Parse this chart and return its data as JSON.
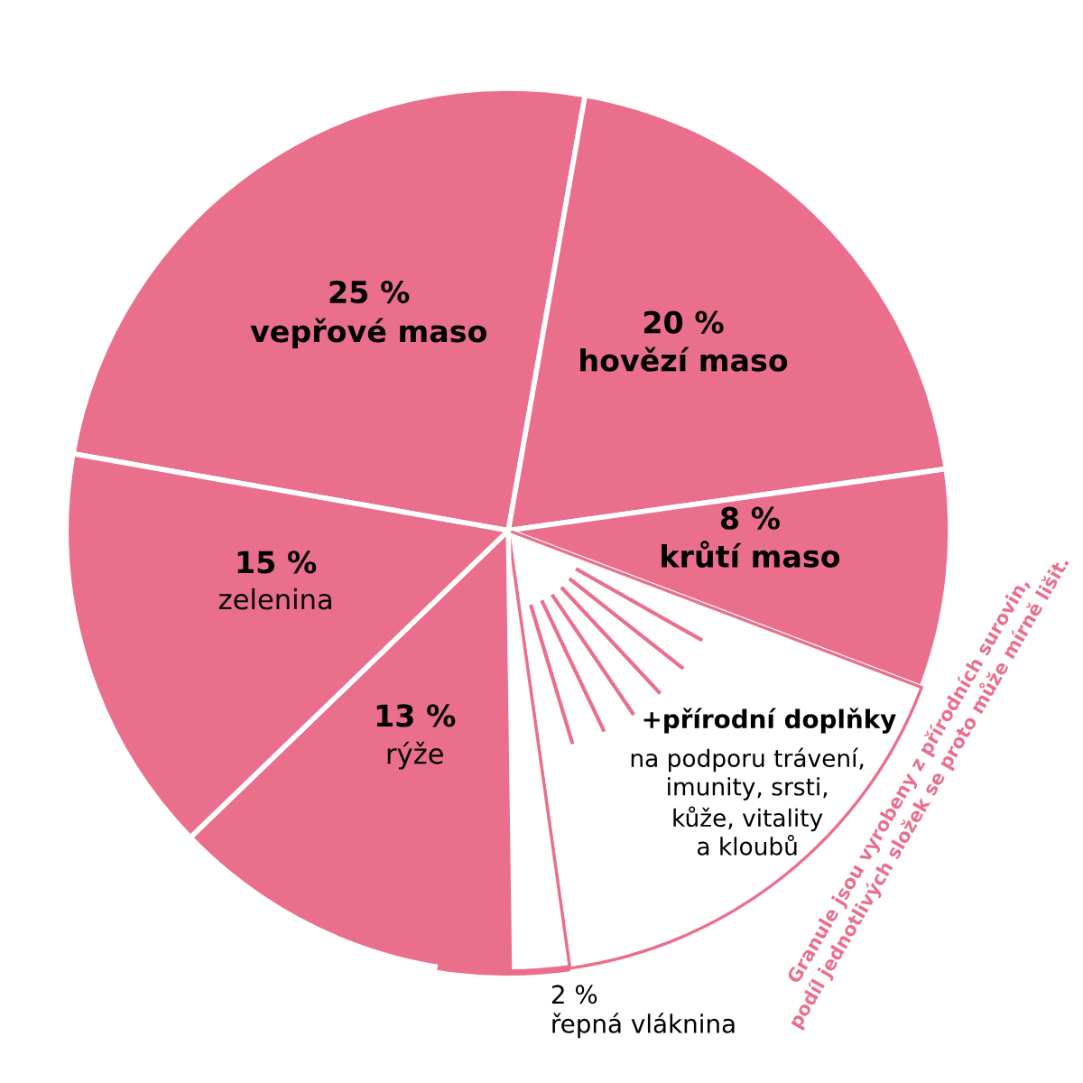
{
  "chart_data": {
    "type": "pie",
    "categories": [
      "vepřové maso",
      "hovězí maso",
      "krůtí maso",
      "+přírodní doplňky",
      "řepná vláknina",
      "rýže",
      "zelenina"
    ],
    "values": [
      25,
      20,
      8,
      17,
      2,
      13,
      15
    ],
    "value_labels": [
      "25 %",
      "20 %",
      "8 %",
      null,
      "2 %",
      "13 %",
      "15 %"
    ],
    "colors": [
      "#ea6f8d",
      "#ea6f8d",
      "#ea6f8d",
      "#ffffff",
      "#ffffff",
      "#ea6f8d",
      "#ea6f8d"
    ],
    "annotations": [
      "na podporu trávení,\nimunity, srsti,\nkůže, vitality\na kloubů",
      "Granule jsou vyrobeny z přírodních surovin,\npodíl jednotlivých složek se proto může mírně lišit."
    ],
    "legend": false
  }
}
